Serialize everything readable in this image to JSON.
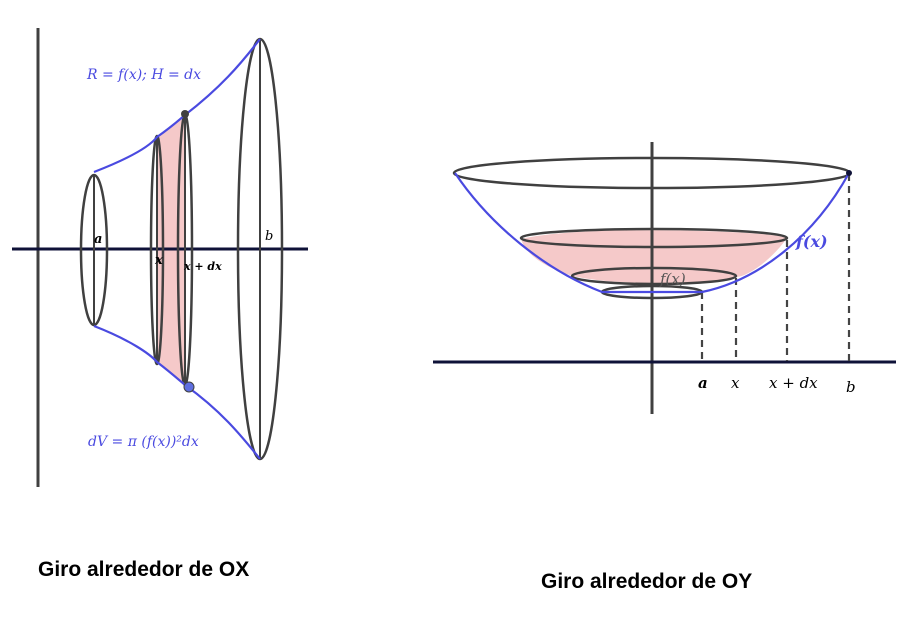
{
  "colors": {
    "curve": "#4a4ae0",
    "axis": "#0f1238",
    "outline": "#404040",
    "shade": "#f5c9c9",
    "dashes": "#444444",
    "point": "#5f6fe0"
  },
  "left": {
    "caption": "Giro alrededor de OX",
    "formula_top": "R = f(x);  H = dx",
    "formula_bottom": "dV = π (f(x))²dx",
    "label_a": "a",
    "label_x": "x",
    "label_xdx": "x + dx",
    "label_b": "b"
  },
  "right": {
    "caption": "Giro alrededor de OY",
    "label_fx_curve": "f(x)",
    "label_fx_inner": "f(x)",
    "label_a": "a",
    "label_x": "x",
    "label_xdx": "x + dx",
    "label_b": "b"
  }
}
